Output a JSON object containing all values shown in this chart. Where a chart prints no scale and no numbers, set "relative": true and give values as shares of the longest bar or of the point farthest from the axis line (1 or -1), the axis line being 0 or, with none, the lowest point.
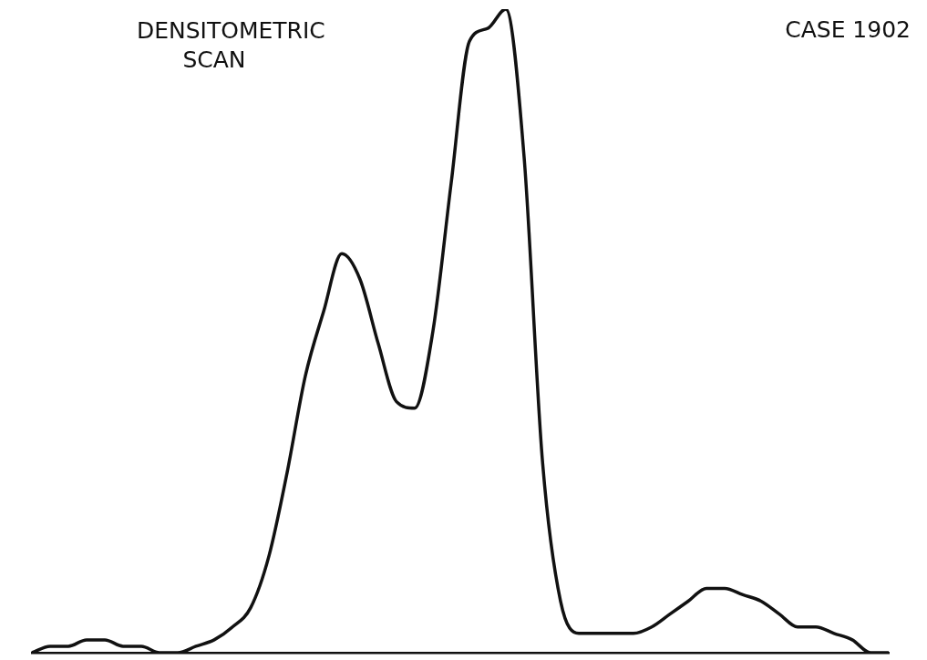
{
  "chart_data": {
    "type": "line",
    "title": "DENSITOMETRIC\nSCAN",
    "annotations": [
      "CASE 1902"
    ],
    "relative": true,
    "color": "#111111",
    "categories": [
      null,
      null,
      null,
      null,
      null,
      null,
      null,
      null,
      null,
      null,
      null,
      null,
      null,
      null,
      null,
      null,
      null,
      null,
      null,
      null,
      null,
      null,
      null,
      null,
      null,
      null,
      null,
      null,
      null,
      null,
      null,
      null,
      null,
      null,
      null,
      null,
      null,
      null,
      null,
      null,
      null,
      null,
      null,
      null,
      null,
      null,
      null,
      null
    ],
    "values": [
      0,
      0.01,
      0.01,
      0.02,
      0.02,
      0.01,
      0.01,
      0,
      0,
      0.01,
      0.02,
      0.04,
      0.07,
      0.15,
      0.28,
      0.43,
      0.53,
      0.62,
      0.58,
      0.48,
      0.39,
      0.38,
      0.5,
      0.73,
      0.95,
      0.97,
      1,
      0.77,
      0.3,
      0.08,
      0.03,
      0.03,
      0.03,
      0.03,
      0.04,
      0.06,
      0.08,
      0.1,
      0.1,
      0.09,
      0.08,
      0.06,
      0.04,
      0.04,
      0.03,
      0.02,
      0,
      0
    ]
  }
}
